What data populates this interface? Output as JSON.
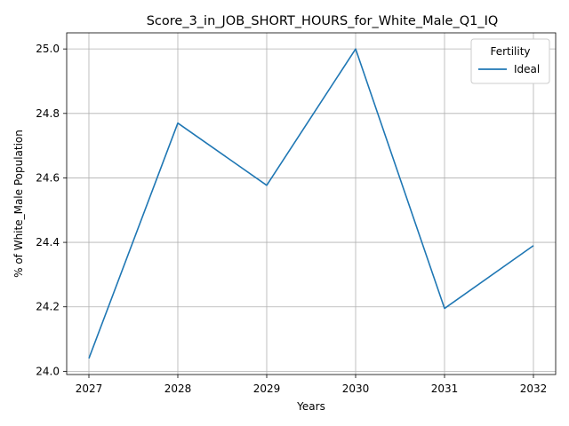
{
  "chart_data": {
    "type": "line",
    "title": "Score_3_in_JOB_SHORT_HOURS_for_White_Male_Q1_IQ",
    "xlabel": "Years",
    "ylabel": "% of White_Male Population",
    "x": [
      2027,
      2028,
      2029,
      2030,
      2031,
      2032
    ],
    "x_ticks": [
      "2027",
      "2028",
      "2029",
      "2030",
      "2031",
      "2032"
    ],
    "y_ticks": [
      "24.0",
      "24.2",
      "24.4",
      "24.6",
      "24.8",
      "25.0"
    ],
    "ylim": [
      23.99,
      25.05
    ],
    "xlim": [
      2026.75,
      2032.25
    ],
    "grid": true,
    "legend": {
      "title": "Fertility",
      "placement": "top-right"
    },
    "series": [
      {
        "name": "Ideal",
        "color": "#1f77b4",
        "values": [
          24.04,
          24.77,
          24.577,
          25.0,
          24.195,
          24.39
        ]
      }
    ]
  }
}
